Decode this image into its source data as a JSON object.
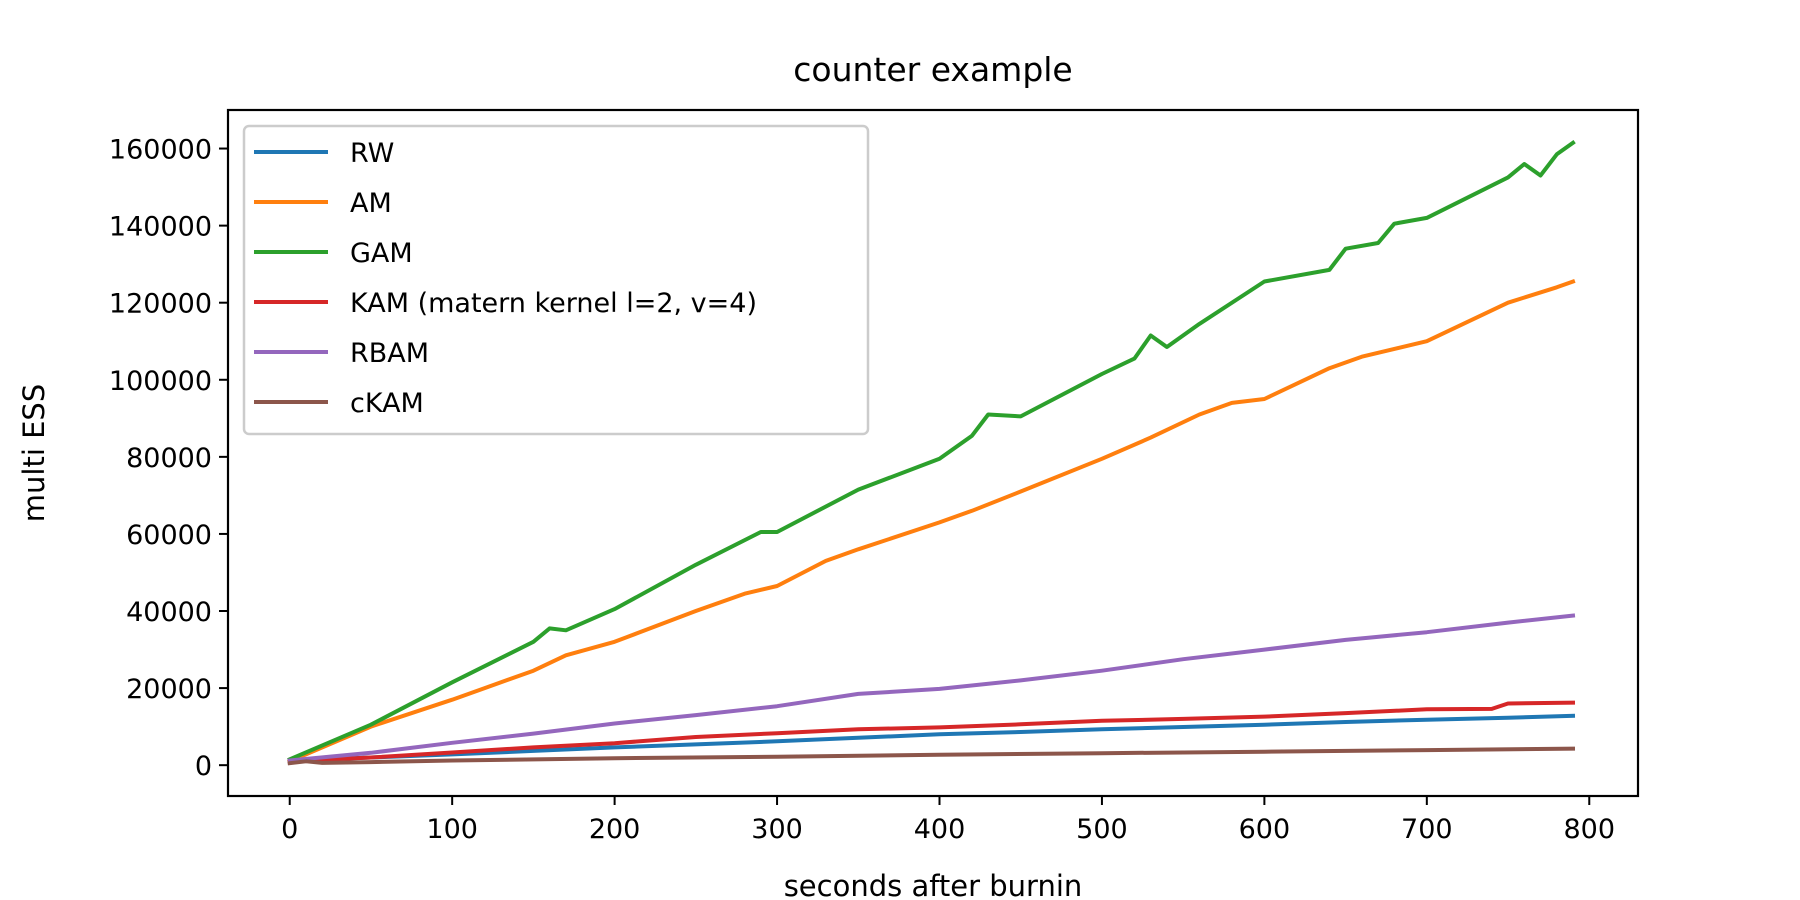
{
  "chart_data": {
    "type": "line",
    "title": "counter example",
    "xlabel": "seconds after burnin",
    "ylabel": "multi ESS",
    "xlim": [
      -38,
      830
    ],
    "ylim": [
      -8000,
      170000
    ],
    "xticks": [
      0,
      100,
      200,
      300,
      400,
      500,
      600,
      700,
      800
    ],
    "yticks": [
      0,
      20000,
      40000,
      60000,
      80000,
      100000,
      120000,
      140000,
      160000
    ],
    "grid": false,
    "legend_position": "upper left",
    "series": [
      {
        "name": "RW",
        "color": "#1f77b4",
        "x": [
          0,
          50,
          100,
          150,
          200,
          250,
          300,
          350,
          400,
          450,
          500,
          550,
          600,
          650,
          700,
          750,
          790
        ],
        "y": [
          1200,
          2000,
          2800,
          3700,
          4600,
          5400,
          6200,
          7100,
          8000,
          8600,
          9300,
          9900,
          10500,
          11200,
          11800,
          12300,
          12800
        ]
      },
      {
        "name": "AM",
        "color": "#ff7f0e",
        "x": [
          0,
          50,
          100,
          120,
          150,
          170,
          200,
          250,
          280,
          300,
          330,
          350,
          400,
          420,
          450,
          500,
          530,
          560,
          580,
          600,
          640,
          660,
          700,
          750,
          780,
          790
        ],
        "y": [
          1000,
          10000,
          17000,
          20000,
          24500,
          28500,
          32000,
          40000,
          44500,
          46500,
          53000,
          56000,
          63000,
          66000,
          71000,
          79500,
          85000,
          91000,
          94000,
          95000,
          103000,
          106000,
          110000,
          120000,
          124000,
          125500
        ]
      },
      {
        "name": "GAM",
        "color": "#2ca02c",
        "x": [
          0,
          50,
          100,
          150,
          160,
          170,
          200,
          250,
          290,
          300,
          350,
          400,
          420,
          430,
          450,
          500,
          520,
          530,
          540,
          560,
          600,
          640,
          650,
          670,
          680,
          700,
          750,
          760,
          770,
          780,
          790
        ],
        "y": [
          1500,
          10500,
          21500,
          32000,
          35500,
          35000,
          40500,
          52000,
          60500,
          60500,
          71500,
          79500,
          85500,
          91000,
          90500,
          101500,
          105500,
          111500,
          108500,
          114500,
          125500,
          128500,
          134000,
          135500,
          140500,
          142000,
          152500,
          156000,
          153000,
          158500,
          161500
        ]
      },
      {
        "name": "KAM (matern kernel l=2, v=4)",
        "color": "#d62728",
        "x": [
          0,
          50,
          100,
          150,
          200,
          250,
          300,
          350,
          400,
          450,
          500,
          550,
          600,
          650,
          700,
          740,
          750,
          790
        ],
        "y": [
          1000,
          2000,
          3300,
          4600,
          5700,
          7300,
          8300,
          9300,
          9800,
          10600,
          11500,
          12000,
          12600,
          13500,
          14500,
          14600,
          16000,
          16200
        ]
      },
      {
        "name": "RBAM",
        "color": "#9467bd",
        "x": [
          0,
          50,
          100,
          150,
          200,
          250,
          300,
          350,
          400,
          450,
          500,
          550,
          600,
          650,
          700,
          750,
          790
        ],
        "y": [
          1200,
          3200,
          5800,
          8200,
          10800,
          13000,
          15300,
          18500,
          19800,
          22000,
          24500,
          27500,
          30000,
          32500,
          34500,
          37000,
          38800
        ]
      },
      {
        "name": "cKAM",
        "color": "#8c564b",
        "x": [
          0,
          10,
          20,
          50,
          100,
          200,
          300,
          400,
          500,
          600,
          700,
          790
        ],
        "y": [
          500,
          1000,
          600,
          800,
          1200,
          1800,
          2200,
          2700,
          3100,
          3500,
          3900,
          4300
        ]
      }
    ]
  }
}
